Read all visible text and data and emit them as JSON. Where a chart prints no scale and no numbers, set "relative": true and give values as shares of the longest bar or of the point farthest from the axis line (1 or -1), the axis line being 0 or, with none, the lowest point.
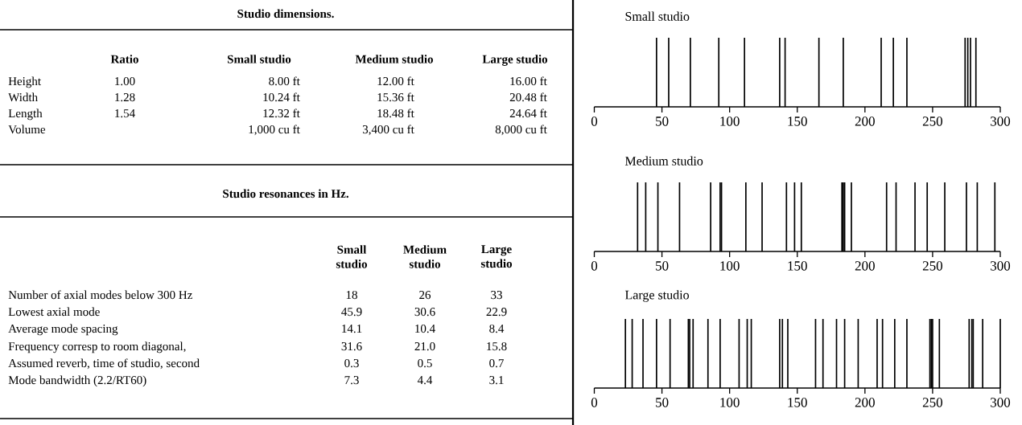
{
  "chart_data": [
    {
      "type": "other",
      "title": "Studio dimensions.",
      "categories": [
        null,
        "Ratio",
        "Small studio",
        "Medium studio",
        "Large studio"
      ],
      "y_categories": [
        "Height",
        "Width",
        "Length",
        "Volume"
      ],
      "cell_labels": [
        [
          "1.00",
          "8.00 ft",
          "12.00 ft",
          "16.00 ft"
        ],
        [
          "1.28",
          "10.24 ft",
          "15.36 ft",
          "20.48 ft"
        ],
        [
          "1.54",
          "12.32 ft",
          "18.48 ft",
          "24.64 ft"
        ],
        [
          null,
          "1,000 cu ft",
          "3,400 cu ft",
          "8,000 cu ft"
        ]
      ]
    },
    {
      "type": "other",
      "title": "Studio resonances in Hz.",
      "categories": [
        null,
        "Small studio",
        "Medium studio",
        "Large studio"
      ],
      "y_categories": [
        "Number of axial modes below 300 Hz",
        "Lowest axial mode",
        "Average mode spacing",
        "Frequency corresp to room diagonal,",
        "Assumed reverb, time of studio, second",
        "Mode bandwidth (2.2/RT60)"
      ],
      "cell_labels": [
        [
          "18",
          "26",
          "33"
        ],
        [
          "45.9",
          "30.6",
          "22.9"
        ],
        [
          "14.1",
          "10.4",
          "8.4"
        ],
        [
          "31.6",
          "21.0",
          "15.8"
        ],
        [
          "0.3",
          "0.5",
          "0.7"
        ],
        [
          "7.3",
          "4.4",
          "3.1"
        ]
      ]
    },
    {
      "type": "bar",
      "title": "Small studio",
      "relative": true,
      "color": "#000000",
      "xlim": [
        0,
        300
      ],
      "xticks": [
        0,
        50,
        100,
        150,
        200,
        250,
        300
      ],
      "x": [
        46,
        55,
        71,
        92,
        111,
        137,
        141,
        166,
        184,
        212,
        221,
        231,
        274,
        276,
        278,
        282
      ],
      "values": [
        1,
        1,
        1,
        1,
        1,
        1,
        1,
        1,
        1,
        1,
        1,
        1,
        1,
        1,
        1,
        1
      ]
    },
    {
      "type": "bar",
      "title": "Medium studio",
      "relative": true,
      "color": "#000000",
      "xlim": [
        0,
        300
      ],
      "xticks": [
        0,
        50,
        100,
        150,
        200,
        250,
        300
      ],
      "x": [
        32,
        38,
        47,
        63,
        86,
        93,
        94,
        112,
        124,
        142,
        148,
        153,
        183,
        184,
        185,
        190,
        216,
        223,
        237,
        246,
        259,
        275,
        283,
        296
      ],
      "values": [
        1,
        1,
        1,
        1,
        1,
        1,
        1,
        1,
        1,
        1,
        1,
        1,
        1,
        1,
        1,
        1,
        1,
        1,
        1,
        1,
        1,
        1,
        1,
        1
      ]
    },
    {
      "type": "bar",
      "title": "Large studio",
      "relative": true,
      "color": "#000000",
      "xlim": [
        0,
        300
      ],
      "xticks": [
        0,
        50,
        100,
        150,
        200,
        250,
        300
      ],
      "x": [
        23,
        28,
        36,
        46,
        56,
        69.5,
        70.5,
        73,
        84,
        93,
        107,
        113,
        116,
        137,
        139,
        143,
        163.5,
        169,
        179,
        185,
        195,
        209,
        213,
        222,
        231,
        248,
        249,
        250,
        255,
        277,
        279,
        280,
        287,
        300
      ],
      "values": [
        1,
        1,
        1,
        1,
        1,
        1,
        1,
        1,
        1,
        1,
        1,
        1,
        1,
        1,
        1,
        1,
        1,
        1,
        1,
        1,
        1,
        1,
        1,
        1,
        1,
        1,
        1,
        1,
        1,
        1,
        1,
        1,
        1,
        1
      ]
    }
  ]
}
